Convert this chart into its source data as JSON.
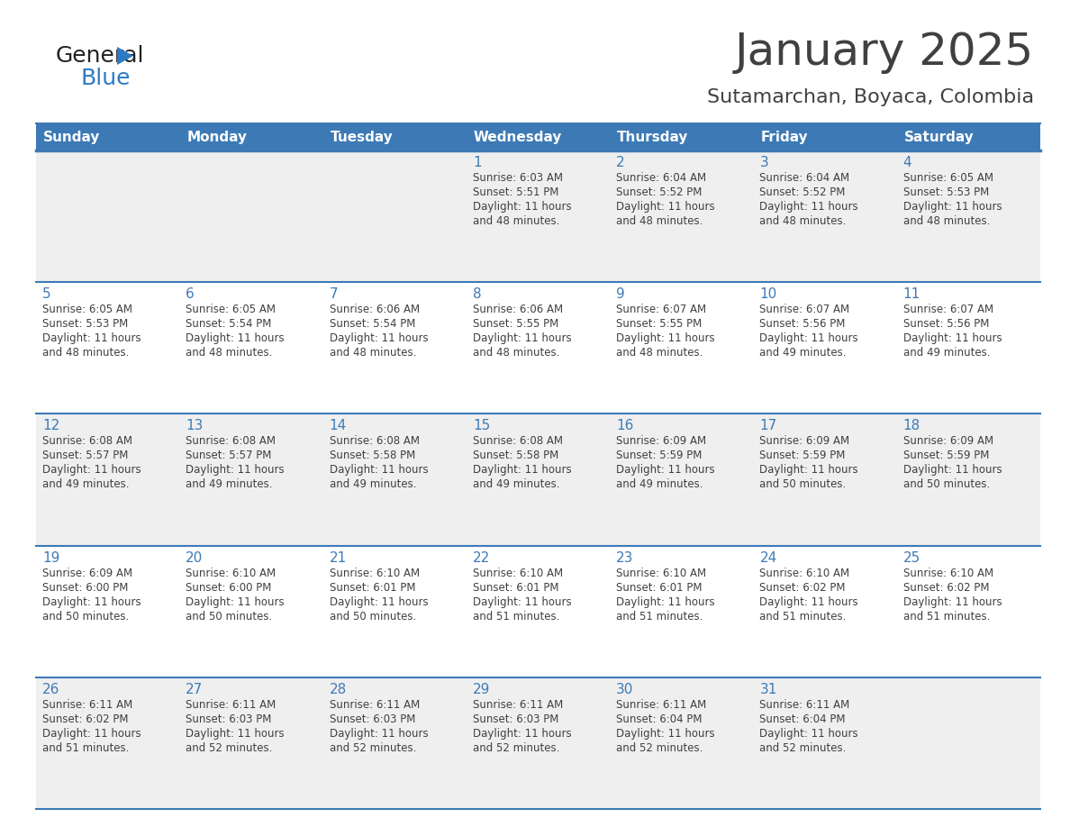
{
  "title": "January 2025",
  "subtitle": "Sutamarchan, Boyaca, Colombia",
  "header_bg_color": "#3d7ab5",
  "header_text_color": "#ffffff",
  "row_bg_even": "#efefef",
  "row_bg_odd": "#ffffff",
  "day_num_color": "#3d7ab5",
  "cell_text_color": "#404040",
  "grid_line_color": "#3d7ab5",
  "days_of_week": [
    "Sunday",
    "Monday",
    "Tuesday",
    "Wednesday",
    "Thursday",
    "Friday",
    "Saturday"
  ],
  "weeks": [
    [
      {
        "day": "",
        "sunrise": "",
        "sunset": "",
        "daylight": ""
      },
      {
        "day": "",
        "sunrise": "",
        "sunset": "",
        "daylight": ""
      },
      {
        "day": "",
        "sunrise": "",
        "sunset": "",
        "daylight": ""
      },
      {
        "day": "1",
        "sunrise": "6:03 AM",
        "sunset": "5:51 PM",
        "daylight": "11 hours and 48 minutes."
      },
      {
        "day": "2",
        "sunrise": "6:04 AM",
        "sunset": "5:52 PM",
        "daylight": "11 hours and 48 minutes."
      },
      {
        "day": "3",
        "sunrise": "6:04 AM",
        "sunset": "5:52 PM",
        "daylight": "11 hours and 48 minutes."
      },
      {
        "day": "4",
        "sunrise": "6:05 AM",
        "sunset": "5:53 PM",
        "daylight": "11 hours and 48 minutes."
      }
    ],
    [
      {
        "day": "5",
        "sunrise": "6:05 AM",
        "sunset": "5:53 PM",
        "daylight": "11 hours and 48 minutes."
      },
      {
        "day": "6",
        "sunrise": "6:05 AM",
        "sunset": "5:54 PM",
        "daylight": "11 hours and 48 minutes."
      },
      {
        "day": "7",
        "sunrise": "6:06 AM",
        "sunset": "5:54 PM",
        "daylight": "11 hours and 48 minutes."
      },
      {
        "day": "8",
        "sunrise": "6:06 AM",
        "sunset": "5:55 PM",
        "daylight": "11 hours and 48 minutes."
      },
      {
        "day": "9",
        "sunrise": "6:07 AM",
        "sunset": "5:55 PM",
        "daylight": "11 hours and 48 minutes."
      },
      {
        "day": "10",
        "sunrise": "6:07 AM",
        "sunset": "5:56 PM",
        "daylight": "11 hours and 49 minutes."
      },
      {
        "day": "11",
        "sunrise": "6:07 AM",
        "sunset": "5:56 PM",
        "daylight": "11 hours and 49 minutes."
      }
    ],
    [
      {
        "day": "12",
        "sunrise": "6:08 AM",
        "sunset": "5:57 PM",
        "daylight": "11 hours and 49 minutes."
      },
      {
        "day": "13",
        "sunrise": "6:08 AM",
        "sunset": "5:57 PM",
        "daylight": "11 hours and 49 minutes."
      },
      {
        "day": "14",
        "sunrise": "6:08 AM",
        "sunset": "5:58 PM",
        "daylight": "11 hours and 49 minutes."
      },
      {
        "day": "15",
        "sunrise": "6:08 AM",
        "sunset": "5:58 PM",
        "daylight": "11 hours and 49 minutes."
      },
      {
        "day": "16",
        "sunrise": "6:09 AM",
        "sunset": "5:59 PM",
        "daylight": "11 hours and 49 minutes."
      },
      {
        "day": "17",
        "sunrise": "6:09 AM",
        "sunset": "5:59 PM",
        "daylight": "11 hours and 50 minutes."
      },
      {
        "day": "18",
        "sunrise": "6:09 AM",
        "sunset": "5:59 PM",
        "daylight": "11 hours and 50 minutes."
      }
    ],
    [
      {
        "day": "19",
        "sunrise": "6:09 AM",
        "sunset": "6:00 PM",
        "daylight": "11 hours and 50 minutes."
      },
      {
        "day": "20",
        "sunrise": "6:10 AM",
        "sunset": "6:00 PM",
        "daylight": "11 hours and 50 minutes."
      },
      {
        "day": "21",
        "sunrise": "6:10 AM",
        "sunset": "6:01 PM",
        "daylight": "11 hours and 50 minutes."
      },
      {
        "day": "22",
        "sunrise": "6:10 AM",
        "sunset": "6:01 PM",
        "daylight": "11 hours and 51 minutes."
      },
      {
        "day": "23",
        "sunrise": "6:10 AM",
        "sunset": "6:01 PM",
        "daylight": "11 hours and 51 minutes."
      },
      {
        "day": "24",
        "sunrise": "6:10 AM",
        "sunset": "6:02 PM",
        "daylight": "11 hours and 51 minutes."
      },
      {
        "day": "25",
        "sunrise": "6:10 AM",
        "sunset": "6:02 PM",
        "daylight": "11 hours and 51 minutes."
      }
    ],
    [
      {
        "day": "26",
        "sunrise": "6:11 AM",
        "sunset": "6:02 PM",
        "daylight": "11 hours and 51 minutes."
      },
      {
        "day": "27",
        "sunrise": "6:11 AM",
        "sunset": "6:03 PM",
        "daylight": "11 hours and 52 minutes."
      },
      {
        "day": "28",
        "sunrise": "6:11 AM",
        "sunset": "6:03 PM",
        "daylight": "11 hours and 52 minutes."
      },
      {
        "day": "29",
        "sunrise": "6:11 AM",
        "sunset": "6:03 PM",
        "daylight": "11 hours and 52 minutes."
      },
      {
        "day": "30",
        "sunrise": "6:11 AM",
        "sunset": "6:04 PM",
        "daylight": "11 hours and 52 minutes."
      },
      {
        "day": "31",
        "sunrise": "6:11 AM",
        "sunset": "6:04 PM",
        "daylight": "11 hours and 52 minutes."
      },
      {
        "day": "",
        "sunrise": "",
        "sunset": "",
        "daylight": ""
      }
    ]
  ],
  "logo_general_color": "#222222",
  "logo_blue_color": "#2b7bc4",
  "fig_bg": "#ffffff",
  "title_fontsize": 36,
  "subtitle_fontsize": 16,
  "header_fontsize": 11,
  "day_num_fontsize": 11,
  "cell_fontsize": 8.5
}
